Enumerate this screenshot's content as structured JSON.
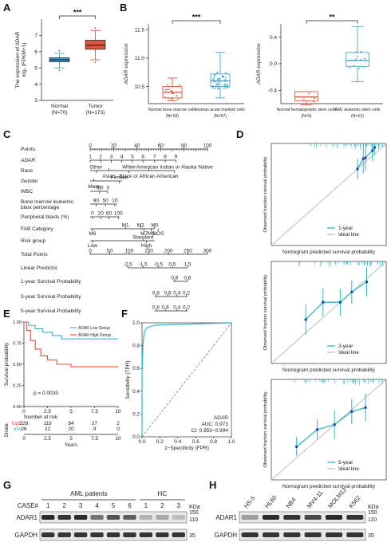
{
  "panels": {
    "A": "A",
    "B": "B",
    "C": "C",
    "D": "D",
    "E": "E",
    "F": "F",
    "G": "G",
    "H": "H"
  },
  "chart_data": [
    {
      "panel": "A",
      "type": "box",
      "ylabel_line1": "The expression of ADAR",
      "ylabel_line2": "log₂ (FPKM+1)",
      "ylim": [
        3,
        8
      ],
      "yticks": [
        "3",
        "4",
        "5",
        "6",
        "7"
      ],
      "categories": [
        "Normal",
        "Tumor"
      ],
      "category_n": [
        "(N=70)",
        "(N=173)"
      ],
      "colors": [
        "#4aa3c8",
        "#e0553a"
      ],
      "boxes": [
        {
          "min": 5.0,
          "q1": 5.38,
          "median": 5.5,
          "q3": 5.62,
          "max": 5.9
        },
        {
          "min": 5.5,
          "q1": 6.15,
          "median": 6.4,
          "q3": 6.7,
          "max": 7.3
        }
      ],
      "significance": "***"
    },
    {
      "panel": "B1",
      "type": "box",
      "ylabel": "ADAR expression",
      "ylim": [
        10.2,
        11.6
      ],
      "yticks": [
        "10.5",
        "11.0",
        "11.5"
      ],
      "categories": [
        "Normal bone marrow cells",
        "Human acute myeloid cells"
      ],
      "category_n": [
        "(N=18)",
        "(N=57)"
      ],
      "colors": [
        "#e0553a",
        "#4aa3c8"
      ],
      "boxes": [
        {
          "min": 10.25,
          "q1": 10.3,
          "median": 10.4,
          "q3": 10.5,
          "max": 10.65
        },
        {
          "min": 10.3,
          "q1": 10.5,
          "median": 10.6,
          "q3": 10.72,
          "max": 11.1
        }
      ],
      "significance": "***"
    },
    {
      "panel": "B2",
      "type": "box",
      "ylabel": "ADAR expression",
      "ylim": [
        -0.6,
        0.6
      ],
      "yticks": [
        "-0.4",
        "0.0",
        "0.4"
      ],
      "categories": [
        "Normal hematopoietic stem cells",
        "AML leukemic stem cells"
      ],
      "category_n": [
        "(N=5)",
        "(N=12)"
      ],
      "colors": [
        "#e0553a",
        "#4aa3c8"
      ],
      "boxes": [
        {
          "min": -0.62,
          "q1": -0.56,
          "median": -0.5,
          "q3": -0.42,
          "max": -0.42
        },
        {
          "min": -0.27,
          "q1": -0.04,
          "median": 0.05,
          "q3": 0.17,
          "max": 0.56
        }
      ],
      "significance": "**"
    },
    {
      "panel": "C",
      "type": "nomogram",
      "rows": [
        {
          "label": "Points",
          "ticks": [
            "0",
            "20",
            "40",
            "60",
            "80",
            "100"
          ]
        },
        {
          "label": "ADAR",
          "ticks": [
            "1",
            "2",
            "3",
            "4",
            "5",
            "6",
            "7",
            "8",
            "9"
          ]
        },
        {
          "label": "Race",
          "ticks": [
            "Other",
            "White",
            "American Indian or Alaska Native",
            "Asian",
            "Black or African American"
          ]
        },
        {
          "label": "Gender",
          "ticks": [
            "Female",
            "Male"
          ]
        },
        {
          "label": "WBC",
          "ticks": [
            "300",
            "0"
          ]
        },
        {
          "label": "Bone marrow leukemic blast percentage",
          "ticks": [
            "90",
            "50",
            "10"
          ]
        },
        {
          "label": "Peripheral blasts (%)",
          "ticks": [
            "0",
            "20",
            "60",
            "100"
          ]
        },
        {
          "label": "FAB Category",
          "ticks": [
            "M1",
            "M2",
            "M0",
            "M6",
            "M7",
            "M5",
            "NOS"
          ]
        },
        {
          "label": "Risk group",
          "ticks": [
            "Standard",
            "Low",
            "High"
          ]
        },
        {
          "label": "Total Points",
          "ticks": [
            "0",
            "50",
            "100",
            "150",
            "200",
            "250",
            "300"
          ]
        },
        {
          "label": "Linear Predictor",
          "ticks": [
            "-2.5",
            "-1.5",
            "-0.5",
            "0.5",
            "1.5"
          ]
        },
        {
          "label": "1-year Survival Probability",
          "ticks": [
            "0.8",
            "0.6"
          ]
        },
        {
          "label": "3-year Survival Probability",
          "ticks": [
            "0.8",
            "0.6",
            "0.4",
            "0.2"
          ]
        },
        {
          "label": "5-year Survival Probability",
          "ticks": [
            "0.8",
            "0.6",
            "0.4",
            "0.2"
          ]
        }
      ]
    },
    {
      "panel": "D",
      "type": "calibration",
      "xlabel": "Nomogram predicted survival probability",
      "ylabel": "Observed fraction survival probability",
      "plots": [
        {
          "legend": [
            "1-year",
            "Ideal line"
          ],
          "xlim": [
            0,
            1
          ],
          "ylim": [
            0,
            1
          ],
          "points": [
            [
              0.75,
              0.75
            ],
            [
              0.8,
              0.85
            ],
            [
              0.82,
              0.86
            ],
            [
              0.88,
              0.93
            ],
            [
              0.9,
              0.96
            ]
          ]
        },
        {
          "legend": [
            "3-year",
            "Ideal line"
          ],
          "xlim": [
            0,
            1
          ],
          "ylim": [
            0,
            1
          ],
          "points": [
            [
              0.3,
              0.43
            ],
            [
              0.45,
              0.6
            ],
            [
              0.6,
              0.6
            ],
            [
              0.7,
              0.7
            ],
            [
              0.83,
              0.8
            ]
          ]
        },
        {
          "legend": [
            "5-year",
            "Ideal line"
          ],
          "xlim": [
            0,
            1
          ],
          "ylim": [
            0,
            1
          ],
          "points": [
            [
              0.22,
              0.33
            ],
            [
              0.4,
              0.5
            ],
            [
              0.55,
              0.55
            ],
            [
              0.7,
              0.68
            ],
            [
              0.82,
              0.72
            ]
          ]
        }
      ]
    },
    {
      "panel": "E",
      "type": "km",
      "ylabel": "Survival probability",
      "xlabel": "Years",
      "xticks": [
        "0",
        "2.5",
        "5",
        "7.5",
        "10"
      ],
      "yticks": [
        "0.00",
        "0.25",
        "0.50",
        "0.75",
        "1.00"
      ],
      "legend": [
        "ADAR Low Group",
        "ADAR High Group"
      ],
      "pvalue": "p = 0.0033",
      "risk_title": "Number at risk",
      "strata_label": "Strata",
      "risk_rows": [
        {
          "label": "high",
          "values": [
            "228",
            "119",
            "84",
            "27",
            "2"
          ]
        },
        {
          "label": "low",
          "values": [
            "26",
            "22",
            "20",
            "9",
            "0"
          ]
        }
      ]
    },
    {
      "panel": "F",
      "type": "roc",
      "xlabel": "1−Specificity (FPR)",
      "ylabel": "Sensitivity (TPR)",
      "ticks": [
        "0.0",
        "0.2",
        "0.4",
        "0.6",
        "0.8",
        "1.0"
      ],
      "legend_name": "ADAR",
      "auc": "AUC: 0.973",
      "ci": "CI: 0.953−0.994"
    }
  ],
  "blots": {
    "G": {
      "header_aml": "AML patients",
      "header_hc": "HC",
      "case_label": "CASE#",
      "lanes": [
        "1",
        "2",
        "3",
        "4",
        "5",
        "6",
        "1",
        "2",
        "3"
      ],
      "rows": [
        "ADAR1",
        "GAPDH"
      ],
      "kda_label": "KDa",
      "markers": [
        "150",
        "110",
        "35"
      ]
    },
    "H": {
      "lanes": [
        "HS-5",
        "HL60",
        "NB4",
        "MV4-11",
        "MOLM13",
        "K562"
      ],
      "rows": [
        "ADAR1",
        "GAPDH"
      ],
      "kda_label": "KDa",
      "markers": [
        "150",
        "110",
        "35"
      ]
    }
  },
  "colors": {
    "blue": "#4aa3c8",
    "red": "#e0553a",
    "teal": "#33b3c7",
    "navy": "#1f3fb0",
    "ideal": "#bdbdbd"
  }
}
